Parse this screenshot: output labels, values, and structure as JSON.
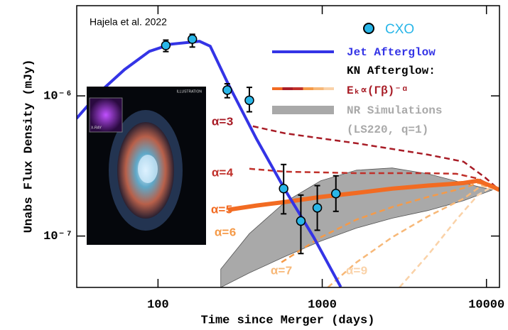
{
  "chart_data": {
    "type": "line",
    "x_label": "Time since Merger (days)",
    "y_label": "Unabs Flux Density (mJy)",
    "annotation": "Hajela et al. 2022",
    "inset": {
      "label": "ILLUSTRATION",
      "xray_label": "X-RAY"
    },
    "log_x": true,
    "log_y": true,
    "xlim": [
      32,
      12000
    ],
    "ylim": [
      4.3e-08,
      4.4e-06
    ],
    "xticks": [
      100,
      1000,
      10000
    ],
    "yticks": [
      {
        "value": 1e-07,
        "label": "10⁻⁷"
      },
      {
        "value": 1e-06,
        "label": "10⁻⁶"
      }
    ],
    "kn_legend": {
      "title": "KN Afterglow:",
      "label": "Eₖ∝(Γβ)⁻ᵅ"
    },
    "nr_note": "(LS220, q=1)",
    "series": [
      {
        "name": "NR Simulations",
        "style": "band",
        "color": "#a9a9a9",
        "x": [
          241,
          360,
          594,
          979,
          1618,
          2667,
          4397,
          7258,
          10840
        ],
        "values": [
          5.8e-08,
          1.04e-07,
          1.75e-07,
          2.48e-07,
          2.95e-07,
          3.06e-07,
          2.78e-07,
          2.39e-07,
          2.13e-07
        ],
        "lower": [
          4.3e-08,
          5.46e-08,
          7.15e-08,
          9.2e-08,
          1.14e-07,
          1.34e-07,
          1.52e-07,
          1.79e-07,
          2.13e-07
        ]
      },
      {
        "name": "α=9",
        "style": "dashed",
        "color": "#fad2a8",
        "x": [
          2951,
          4397,
          6561,
          8865,
          10840,
          12000
        ],
        "values": [
          4.3e-08,
          7.3e-08,
          1.31e-07,
          1.96e-07,
          2.26e-07,
          2.13e-07
        ]
      },
      {
        "name": "α=7",
        "style": "dashed",
        "color": "#f7b878",
        "x": [
          1083,
          1618,
          2667,
          4397,
          7258,
          9333,
          12000
        ],
        "values": [
          4.3e-08,
          6.5e-08,
          9.8e-08,
          1.38e-07,
          1.85e-07,
          2.29e-07,
          2.13e-07
        ]
      },
      {
        "name": "α=6",
        "style": "dashed",
        "color": "#f59a48",
        "x": [
          565,
          979,
          1618,
          2667,
          4397,
          7258,
          8865,
          10840,
          12000
        ],
        "values": [
          6.5e-08,
          9.8e-08,
          1.31e-07,
          1.61e-07,
          1.9e-07,
          2.2e-07,
          2.39e-07,
          2.29e-07,
          2.13e-07
        ]
      },
      {
        "name": "α=4",
        "style": "dashed",
        "color": "#c0302a",
        "x": [
          360,
          594,
          1618,
          4397,
          6561,
          8865,
          11970
        ],
        "values": [
          3.02e-07,
          2.88e-07,
          2.81e-07,
          2.81e-07,
          2.78e-07,
          2.57e-07,
          2.13e-07
        ]
      },
      {
        "name": "α=3",
        "style": "dashed",
        "color": "#a81c26",
        "x": [
          378,
          594,
          979,
          1618,
          2667,
          4397,
          7258,
          9795,
          11970
        ],
        "values": [
          6.07e-07,
          5.4e-07,
          4.98e-07,
          4.59e-07,
          4.18e-07,
          3.81e-07,
          3.39e-07,
          2.62e-07,
          2.13e-07
        ]
      },
      {
        "name": "α=5",
        "style": "thick",
        "color": "#f26b22",
        "x": [
          267,
          398,
          594,
          979,
          1618,
          2667,
          4397,
          7258,
          8865,
          10840,
          12000
        ],
        "values": [
          1.54e-07,
          1.65e-07,
          1.75e-07,
          1.9e-07,
          2.03e-07,
          2.18e-07,
          2.29e-07,
          2.39e-07,
          2.48e-07,
          2.26e-07,
          2.13e-07
        ]
      },
      {
        "name": "Jet Afterglow",
        "style": "solid",
        "color": "#3434e6",
        "x": [
          31.9,
          44,
          62.5,
          88.7,
          120,
          179,
          208,
          267,
          398,
          594,
          887,
          1297
        ],
        "values": [
          6.9e-07,
          1.06e-06,
          1.54e-06,
          2.08e-06,
          2.34e-06,
          2.45e-06,
          2.26e-06,
          1.22e-06,
          4.92e-07,
          2.13e-07,
          9.8e-08,
          4.33e-08
        ]
      },
      {
        "name": "CXO",
        "style": "points",
        "color": "#29b6e8",
        "x": [
          111.6,
          161.8,
          264,
          360,
          582,
          741,
          933,
          1211
        ],
        "values": [
          2.29e-06,
          2.54e-06,
          1.1e-06,
          9.3e-07,
          2.18e-07,
          1.28e-07,
          1.59e-07,
          2.01e-07
        ],
        "y_low": [
          2.07e-06,
          2.23e-06,
          9.7e-07,
          7.7e-07,
          1.44e-07,
          7.5e-08,
          1.1e-07,
          1.5e-07
        ],
        "y_high": [
          2.5e-06,
          2.75e-06,
          1.22e-06,
          1.15e-06,
          3.24e-07,
          1.96e-07,
          2.29e-07,
          2.69e-07
        ]
      }
    ]
  }
}
